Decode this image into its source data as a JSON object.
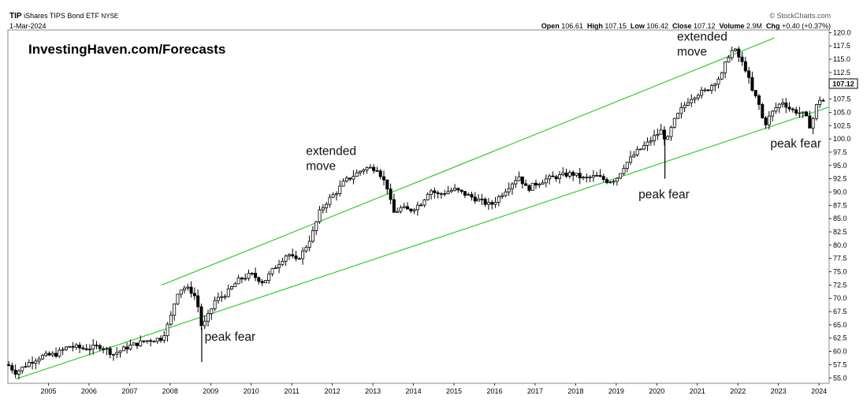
{
  "header": {
    "symbol": "TIP",
    "name": "iShares TIPS Bond ETF",
    "exchange": "NYSE",
    "date": "1-Mar-2024",
    "credit": "© StockCharts.com",
    "open_label": "Open",
    "open": "106.61",
    "high_label": "High",
    "high": "107.15",
    "low_label": "Low",
    "low": "106.42",
    "close_label": "Close",
    "close": "107.12",
    "volume_label": "Volume",
    "volume": "2.9M",
    "chg_label": "Chg",
    "chg": "+0.40 (+0.37%)"
  },
  "watermark": "InvestingHaven.com/Forecasts",
  "last_price_label": "107.12",
  "annotations": [
    {
      "lines": [
        "extended",
        "move"
      ],
      "year": 2011.35,
      "y": 97.0
    },
    {
      "lines": [
        "extended",
        "move"
      ],
      "year": 2020.5,
      "y": 118.5
    },
    {
      "lines": [
        "peak fear"
      ],
      "year": 2008.85,
      "y": 62.0
    },
    {
      "lines": [
        "peak fear"
      ],
      "year": 2019.55,
      "y": 88.8
    },
    {
      "lines": [
        "peak fear"
      ],
      "year": 2022.8,
      "y": 98.4
    }
  ],
  "colors": {
    "channel": "#33cc33",
    "candle": "#000000",
    "grid": "#e6e6e6"
  },
  "chart_data": {
    "type": "candlestick",
    "title": "TIP iShares TIPS Bond ETF NYSE",
    "x_ticks": [
      "2005",
      "2006",
      "2007",
      "2008",
      "2009",
      "2010",
      "2011",
      "2012",
      "2013",
      "2014",
      "2015",
      "2016",
      "2017",
      "2018",
      "2019",
      "2020",
      "2021",
      "2022",
      "2023",
      "2024"
    ],
    "y_ticks": [
      "55.0",
      "57.5",
      "60.0",
      "62.5",
      "65.0",
      "67.5",
      "70.0",
      "72.5",
      "75.0",
      "77.5",
      "80.0",
      "82.5",
      "85.0",
      "87.5",
      "90.0",
      "92.5",
      "95.0",
      "97.5",
      "100.0",
      "102.5",
      "105.0",
      "107.5",
      "110.0",
      "112.5",
      "115.0",
      "117.5",
      "120.0"
    ],
    "ylim": [
      54,
      120.5
    ],
    "xlim": [
      2004.0,
      2024.25
    ],
    "grid": false,
    "series": [
      {
        "name": "TIP",
        "points": [
          [
            2004.0,
            57.5
          ],
          [
            2004.2,
            56.0
          ],
          [
            2004.5,
            57.8
          ],
          [
            2004.8,
            59.0
          ],
          [
            2005.2,
            59.5
          ],
          [
            2005.5,
            61.0
          ],
          [
            2005.9,
            60.5
          ],
          [
            2006.3,
            61.0
          ],
          [
            2006.6,
            59.5
          ],
          [
            2007.0,
            61.0
          ],
          [
            2007.4,
            62.0
          ],
          [
            2007.8,
            62.5
          ],
          [
            2008.0,
            66.0
          ],
          [
            2008.1,
            69.0
          ],
          [
            2008.2,
            71.5
          ],
          [
            2008.35,
            72.0
          ],
          [
            2008.5,
            71.5
          ],
          [
            2008.65,
            70.0
          ],
          [
            2008.78,
            64.5
          ],
          [
            2008.9,
            66.0
          ],
          [
            2009.1,
            69.5
          ],
          [
            2009.4,
            71.0
          ],
          [
            2009.7,
            73.5
          ],
          [
            2010.0,
            74.5
          ],
          [
            2010.3,
            73.0
          ],
          [
            2010.6,
            76.0
          ],
          [
            2010.9,
            78.5
          ],
          [
            2011.1,
            77.0
          ],
          [
            2011.3,
            79.0
          ],
          [
            2011.5,
            82.0
          ],
          [
            2011.7,
            86.5
          ],
          [
            2011.9,
            88.5
          ],
          [
            2012.1,
            90.0
          ],
          [
            2012.3,
            92.0
          ],
          [
            2012.6,
            93.5
          ],
          [
            2012.8,
            94.5
          ],
          [
            2013.1,
            94.5
          ],
          [
            2013.35,
            91.0
          ],
          [
            2013.5,
            86.0
          ],
          [
            2013.7,
            87.0
          ],
          [
            2013.9,
            86.5
          ],
          [
            2014.2,
            88.0
          ],
          [
            2014.4,
            90.5
          ],
          [
            2014.6,
            89.5
          ],
          [
            2014.8,
            90.0
          ],
          [
            2015.0,
            90.5
          ],
          [
            2015.3,
            89.5
          ],
          [
            2015.6,
            88.5
          ],
          [
            2015.9,
            87.5
          ],
          [
            2016.1,
            89.0
          ],
          [
            2016.4,
            91.5
          ],
          [
            2016.6,
            93.0
          ],
          [
            2016.8,
            90.5
          ],
          [
            2017.0,
            91.5
          ],
          [
            2017.3,
            92.5
          ],
          [
            2017.6,
            93.0
          ],
          [
            2017.9,
            93.5
          ],
          [
            2018.2,
            92.5
          ],
          [
            2018.5,
            93.0
          ],
          [
            2018.8,
            92.0
          ],
          [
            2019.0,
            92.5
          ],
          [
            2019.2,
            95.0
          ],
          [
            2019.5,
            97.5
          ],
          [
            2019.75,
            99.0
          ],
          [
            2019.95,
            100.5
          ],
          [
            2020.1,
            101.5
          ],
          [
            2020.25,
            99.5
          ],
          [
            2020.4,
            103.0
          ],
          [
            2020.6,
            105.5
          ],
          [
            2020.8,
            107.5
          ],
          [
            2021.0,
            108.5
          ],
          [
            2021.2,
            109.0
          ],
          [
            2021.4,
            110.5
          ],
          [
            2021.6,
            112.0
          ],
          [
            2021.75,
            115.5
          ],
          [
            2021.9,
            117.0
          ],
          [
            2022.05,
            115.0
          ],
          [
            2022.2,
            113.0
          ],
          [
            2022.35,
            109.0
          ],
          [
            2022.5,
            107.0
          ],
          [
            2022.65,
            102.5
          ],
          [
            2022.8,
            104.5
          ],
          [
            2022.95,
            106.0
          ],
          [
            2023.1,
            107.0
          ],
          [
            2023.3,
            105.5
          ],
          [
            2023.5,
            105.0
          ],
          [
            2023.65,
            104.5
          ],
          [
            2023.8,
            102.0
          ],
          [
            2023.9,
            105.5
          ],
          [
            2024.0,
            107.5
          ],
          [
            2024.15,
            107.12
          ]
        ]
      }
    ],
    "channel_lines": [
      {
        "name": "upper",
        "from": [
          2007.8,
          72.5
        ],
        "to": [
          2022.9,
          119.0
        ]
      },
      {
        "name": "lower",
        "from": [
          2004.2,
          54.8
        ],
        "to": [
          2024.25,
          106.0
        ]
      }
    ]
  }
}
